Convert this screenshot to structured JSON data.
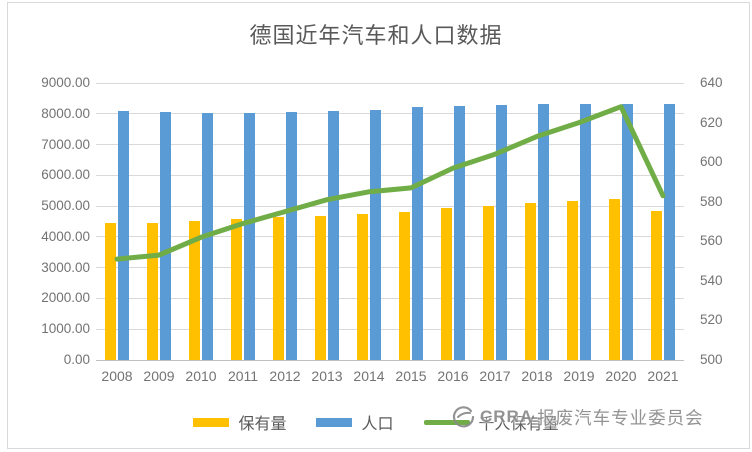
{
  "title": "德国近年汽车和人口数据",
  "watermark": {
    "brand": "CRRA",
    "text": "报废汽车专业委员会"
  },
  "chart_data": {
    "type": "combo-bar-line",
    "title": "德国近年汽车和人口数据",
    "categories": [
      "2008",
      "2009",
      "2010",
      "2011",
      "2012",
      "2013",
      "2014",
      "2015",
      "2016",
      "2017",
      "2018",
      "2019",
      "2020",
      "2021"
    ],
    "series": [
      {
        "name": "保有量",
        "type": "bar",
        "axis": "left",
        "color": "#FFC000",
        "values": [
          4450,
          4450,
          4510,
          4570,
          4630,
          4690,
          4750,
          4820,
          4930,
          5000,
          5090,
          5160,
          5225,
          4850
        ]
      },
      {
        "name": "人口",
        "type": "bar",
        "axis": "left",
        "color": "#5B9BD5",
        "values": [
          8076,
          8048,
          8028,
          8033,
          8052,
          8077,
          8120,
          8218,
          8252,
          8279,
          8302,
          8317,
          8316,
          8324
        ]
      },
      {
        "name": "千人保有量",
        "type": "line",
        "axis": "right",
        "color": "#70AD47",
        "values": [
          551,
          553,
          562,
          569,
          575,
          581,
          585,
          587,
          597,
          604,
          613,
          620,
          628,
          583
        ]
      }
    ],
    "left_axis": {
      "min": 0,
      "max": 9000,
      "step": 1000,
      "ticks": [
        "9000.00",
        "8000.00",
        "7000.00",
        "6000.00",
        "5000.00",
        "4000.00",
        "3000.00",
        "2000.00",
        "1000.00",
        "0.00"
      ]
    },
    "right_axis": {
      "min": 500,
      "max": 640,
      "step": 20,
      "ticks": [
        "640",
        "620",
        "600",
        "580",
        "560",
        "540",
        "520",
        "500"
      ]
    },
    "legend_position": "bottom",
    "grid": true
  }
}
